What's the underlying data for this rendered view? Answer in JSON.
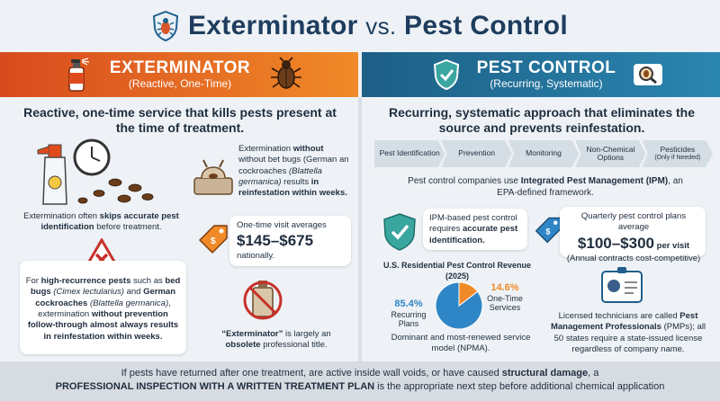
{
  "title": {
    "part1": "Exterminator",
    "vs": "vs.",
    "part2": "Pest Control"
  },
  "left": {
    "band_title": "EXTERMINATOR",
    "band_sub": "(Reactive, One-Time)",
    "heading": "Reactive, one-time service that kills pests present at the time of treatment.",
    "skip_pre": "Extermination often ",
    "skip_bold": "skips accurate pest identification",
    "skip_post": " before treatment.",
    "recur_pre": "For ",
    "recur_b1": "high-recurrence pests",
    "recur_m1": " such as ",
    "recur_b2": "bed bugs",
    "recur_i1": " (Cimex lectularius)",
    "recur_m2": " and ",
    "recur_b3": "German cockroaches",
    "recur_i2": " (Blattella germanica)",
    "recur_m3": ", extermination ",
    "recur_b4": "without prevention follow-through almost always results in reinfestation within weeks.",
    "without_pre": "Extermination ",
    "without_bold": "without",
    "without_mid": " without bet bugs (German an cockroaches ",
    "without_it": "(Blattella germanica)",
    "without_mid2": " results ",
    "without_bold2": "in reinfestation within weeks.",
    "visit_label": "One-time visit averages",
    "visit_price": "$145–$675",
    "visit_post": "nationally.",
    "obsolete_pre": "",
    "obsolete_b1": "“Exterminator”",
    "obsolete_mid": " is largely an ",
    "obsolete_b2": "obsolete",
    "obsolete_post": " professional title."
  },
  "right": {
    "band_title": "PEST CONTROL",
    "band_sub": "(Recurring, Systematic)",
    "heading": "Recurring, systematic approach that eliminates the source and prevents reinfestation.",
    "steps": [
      {
        "label": "Pest Identification",
        "small": ""
      },
      {
        "label": "Prevention",
        "small": ""
      },
      {
        "label": "Monitoring",
        "small": ""
      },
      {
        "label": "Non-Chemical Options",
        "small": ""
      },
      {
        "label": "Pesticides",
        "small": "(Only if Needed)"
      }
    ],
    "ipm_pre": "Pest control companies use ",
    "ipm_bold": "Integrated Pest Management (IPM)",
    "ipm_post": ", an EPA-defined framework.",
    "ipm_card_pre": "IPM-based pest control requires ",
    "ipm_card_bold": "accurate pest identification.",
    "quarterly_label": "Quarterly pest control plans average",
    "quarterly_price": "$100–$300",
    "quarterly_unit": " per visit",
    "quarterly_post": "(Annual contracts cost-competitive)",
    "licensed_pre": "Licensed technicians are called ",
    "licensed_bold": "Pest Management Professionals",
    "licensed_post": " (PMPs); all 50 states require a state-issued license regardless of company name."
  },
  "chart_data": {
    "type": "pie",
    "title": "U.S. Residential Pest Control Revenue (2025)",
    "categories": [
      "Recurring Plans",
      "One-Time Services"
    ],
    "values": [
      85.4,
      14.6
    ],
    "value_labels": [
      "85.4%",
      "14.6%"
    ],
    "colors": [
      "#2f86c6",
      "#f08a28"
    ],
    "caption": "Dominant and most-renewed service model (NPMA)."
  },
  "footer": {
    "line1_pre": "If pests have returned after one treatment, are active inside wall voids, or have caused ",
    "line1_bold": "structural damage",
    "line1_post": ", a",
    "line2_bold": "PROFESSIONAL INSPECTION WITH A WRITTEN TREATMENT PLAN",
    "line2_post": " is the appropriate next step before additional chemical application"
  },
  "icons": [
    "shield-bug-icon",
    "spray-can-icon",
    "beetle-icon",
    "shield-check-icon",
    "magnifier-bug-icon",
    "spray-bottle-icon",
    "clock-icon",
    "cockroach-icon",
    "warning-x-icon",
    "trap-icon",
    "price-tag-icon",
    "no-spray-icon",
    "id-badge-icon"
  ]
}
